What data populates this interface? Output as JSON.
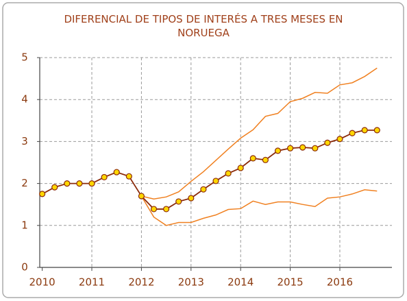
{
  "chart_data": {
    "type": "line",
    "title": "DIFERENCIAL DE TIPOS DE INTERÉS A TRES MESES EN NORUEGA",
    "x": [
      2010,
      2010.25,
      2010.5,
      2010.75,
      2011,
      2011.25,
      2011.5,
      2011.75,
      2012,
      2012.25,
      2012.5,
      2012.75,
      2013,
      2013.25,
      2013.5,
      2013.75,
      2014,
      2014.25,
      2014.5,
      2014.75,
      2015,
      2015.25,
      2015.5,
      2015.75,
      2016,
      2016.25,
      2016.5,
      2016.75
    ],
    "series": [
      {
        "color": "#8b2a0a",
        "marker_color": "#ffd700",
        "values": [
          1.75,
          1.91,
          2.0,
          2.0,
          2.0,
          2.15,
          2.27,
          2.17,
          1.7,
          1.39,
          1.39,
          1.57,
          1.65,
          1.86,
          2.06,
          2.24,
          2.37,
          2.6,
          2.56,
          2.78,
          2.84,
          2.86,
          2.84,
          2.97,
          3.06,
          3.2,
          3.27,
          3.27
        ]
      },
      {
        "color": "#f08020",
        "values": [
          null,
          null,
          null,
          null,
          null,
          null,
          null,
          null,
          1.7,
          1.63,
          1.68,
          1.8,
          2.05,
          2.28,
          2.55,
          2.82,
          3.08,
          3.28,
          3.6,
          3.67,
          3.95,
          4.03,
          4.17,
          4.15,
          4.35,
          4.4,
          4.55,
          4.75
        ]
      },
      {
        "color": "#f08020",
        "values": [
          null,
          null,
          null,
          null,
          null,
          null,
          null,
          null,
          1.7,
          1.2,
          1.0,
          1.07,
          1.07,
          1.17,
          1.25,
          1.38,
          1.4,
          1.58,
          1.5,
          1.56,
          1.56,
          1.5,
          1.45,
          1.65,
          1.68,
          1.75,
          1.85,
          1.82
        ]
      }
    ],
    "xlim": [
      2009.95,
      2017.05
    ],
    "xticks": [
      2010,
      2011,
      2012,
      2013,
      2014,
      2015,
      2016
    ],
    "ylim": [
      0,
      5
    ],
    "yticks": [
      0,
      1,
      2,
      3,
      4,
      5
    ],
    "grid": true
  }
}
